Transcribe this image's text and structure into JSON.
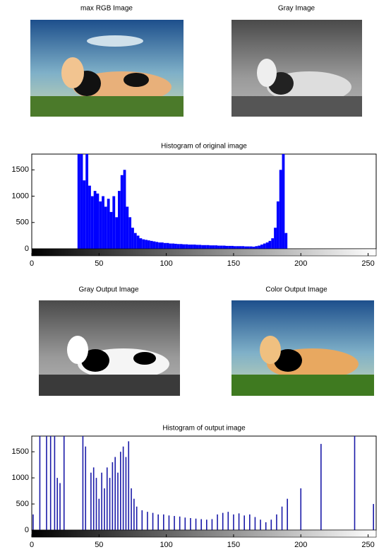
{
  "images": [
    {
      "title": "max RGB Image"
    },
    {
      "title": "Gray Image"
    },
    {
      "title": "Gray Output Image"
    },
    {
      "title": "Color Output Image"
    }
  ],
  "chart_data": [
    {
      "type": "bar",
      "title": "Histogram of original image",
      "color": "#0000ff",
      "x": [
        35,
        37,
        39,
        41,
        43,
        45,
        47,
        49,
        51,
        53,
        55,
        57,
        59,
        61,
        63,
        65,
        67,
        69,
        71,
        73,
        75,
        77,
        79,
        81,
        83,
        85,
        87,
        89,
        91,
        93,
        95,
        97,
        99,
        101,
        103,
        105,
        107,
        109,
        111,
        113,
        115,
        117,
        119,
        121,
        123,
        125,
        127,
        129,
        131,
        133,
        135,
        137,
        139,
        141,
        143,
        145,
        147,
        149,
        151,
        153,
        155,
        157,
        159,
        161,
        163,
        165,
        167,
        169,
        171,
        173,
        175,
        177,
        179,
        181,
        183,
        185,
        187,
        189
      ],
      "values": [
        1800,
        1800,
        1300,
        1800,
        1200,
        1000,
        1100,
        1050,
        900,
        1000,
        800,
        950,
        700,
        1000,
        600,
        1100,
        1400,
        1500,
        800,
        600,
        400,
        300,
        250,
        200,
        180,
        170,
        160,
        150,
        140,
        130,
        120,
        120,
        110,
        110,
        100,
        100,
        95,
        90,
        90,
        85,
        85,
        80,
        80,
        80,
        75,
        75,
        70,
        70,
        70,
        65,
        65,
        65,
        60,
        60,
        60,
        55,
        55,
        55,
        50,
        50,
        50,
        50,
        45,
        45,
        45,
        40,
        50,
        60,
        80,
        100,
        120,
        150,
        200,
        400,
        900,
        1500,
        1800,
        300
      ],
      "xlim": [
        0,
        256
      ],
      "ylim": [
        0,
        1800
      ],
      "xticks": [
        0,
        50,
        100,
        150,
        200,
        250
      ],
      "yticks": [
        0,
        500,
        1000,
        1500
      ]
    },
    {
      "type": "stem",
      "title": "Histogram of output image",
      "color": "#1a1aa8",
      "x": [
        1,
        6,
        11,
        14,
        17,
        19,
        21,
        24,
        38,
        40,
        44,
        46,
        48,
        50,
        52,
        54,
        56,
        58,
        60,
        62,
        64,
        66,
        68,
        70,
        72,
        74,
        76,
        78,
        82,
        86,
        90,
        94,
        98,
        102,
        106,
        110,
        114,
        118,
        122,
        126,
        130,
        134,
        138,
        142,
        146,
        150,
        154,
        158,
        162,
        166,
        170,
        174,
        178,
        182,
        186,
        190,
        200,
        215,
        240,
        254
      ],
      "values": [
        300,
        1800,
        1800,
        1800,
        1800,
        1000,
        900,
        1800,
        1800,
        1600,
        1100,
        1200,
        1000,
        600,
        1100,
        800,
        1200,
        1000,
        1300,
        1400,
        1100,
        1500,
        1600,
        1400,
        1700,
        800,
        600,
        450,
        380,
        350,
        330,
        300,
        300,
        280,
        270,
        260,
        240,
        230,
        220,
        210,
        200,
        210,
        300,
        330,
        350,
        300,
        320,
        280,
        300,
        250,
        200,
        150,
        200,
        300,
        450,
        600,
        800,
        1650,
        1800,
        500
      ],
      "xlim": [
        0,
        256
      ],
      "ylim": [
        0,
        1800
      ],
      "xticks": [
        0,
        50,
        100,
        150,
        200,
        250
      ],
      "yticks": [
        0,
        500,
        1000,
        1500
      ]
    }
  ]
}
